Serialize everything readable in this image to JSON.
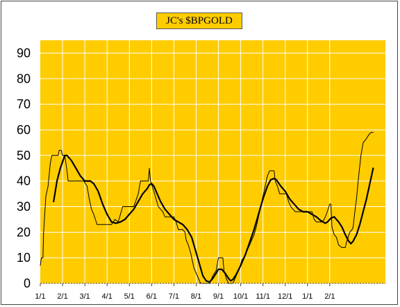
{
  "chart_data": {
    "type": "line",
    "title": "JC's $BPGOLD",
    "xlabel": "",
    "ylabel": "",
    "ylim": [
      0,
      95
    ],
    "yticks": [
      "0",
      "10",
      "20",
      "30",
      "40",
      "50",
      "60",
      "70",
      "80",
      "90"
    ],
    "xticks": [
      "1/1",
      "2/1",
      "3/1",
      "4/1",
      "5/1",
      "6/1",
      "7/1",
      "8/1",
      "9/1",
      "10/1",
      "11/1",
      "12/1",
      "1/1",
      "2/1"
    ],
    "grid": true,
    "x_unit": "months from first 1/1 tick",
    "series": [
      {
        "name": "",
        "style": "thin-step",
        "points": [
          [
            0.0,
            7
          ],
          [
            0.05,
            10
          ],
          [
            0.12,
            10
          ],
          [
            0.15,
            20
          ],
          [
            0.25,
            34
          ],
          [
            0.35,
            38
          ],
          [
            0.45,
            47
          ],
          [
            0.52,
            50
          ],
          [
            0.8,
            50
          ],
          [
            0.85,
            52
          ],
          [
            0.95,
            52
          ],
          [
            1.0,
            50
          ],
          [
            1.1,
            50
          ],
          [
            1.2,
            44
          ],
          [
            1.25,
            40
          ],
          [
            1.95,
            40
          ],
          [
            2.1,
            38
          ],
          [
            2.2,
            33
          ],
          [
            2.3,
            29
          ],
          [
            2.4,
            27
          ],
          [
            2.55,
            23
          ],
          [
            3.2,
            23
          ],
          [
            3.35,
            25
          ],
          [
            3.5,
            24
          ],
          [
            3.7,
            30
          ],
          [
            4.2,
            30
          ],
          [
            4.4,
            35
          ],
          [
            4.5,
            40
          ],
          [
            4.85,
            40
          ],
          [
            4.9,
            45
          ],
          [
            4.95,
            40
          ],
          [
            5.1,
            36
          ],
          [
            5.2,
            33
          ],
          [
            5.3,
            30
          ],
          [
            5.5,
            28
          ],
          [
            5.6,
            26
          ],
          [
            6.0,
            26
          ],
          [
            6.1,
            24
          ],
          [
            6.2,
            21
          ],
          [
            6.4,
            21
          ],
          [
            6.5,
            20
          ],
          [
            6.55,
            17
          ],
          [
            6.65,
            15
          ],
          [
            6.75,
            12
          ],
          [
            6.85,
            8
          ],
          [
            6.9,
            6
          ],
          [
            7.0,
            4
          ],
          [
            7.1,
            2
          ],
          [
            7.2,
            0
          ],
          [
            7.6,
            0
          ],
          [
            7.75,
            3
          ],
          [
            7.9,
            5
          ],
          [
            8.0,
            10
          ],
          [
            8.2,
            10
          ],
          [
            8.25,
            5
          ],
          [
            8.35,
            2
          ],
          [
            8.45,
            0
          ],
          [
            8.65,
            0
          ],
          [
            8.75,
            2
          ],
          [
            8.85,
            4
          ],
          [
            8.95,
            6
          ],
          [
            9.05,
            9
          ],
          [
            9.2,
            11
          ],
          [
            9.3,
            13
          ],
          [
            9.4,
            15
          ],
          [
            9.5,
            17
          ],
          [
            9.6,
            19
          ],
          [
            9.7,
            22
          ],
          [
            9.8,
            26
          ],
          [
            9.9,
            30
          ],
          [
            10.0,
            34
          ],
          [
            10.1,
            38
          ],
          [
            10.2,
            42
          ],
          [
            10.3,
            44
          ],
          [
            10.5,
            44
          ],
          [
            10.55,
            40
          ],
          [
            10.65,
            38
          ],
          [
            10.75,
            35
          ],
          [
            11.05,
            35
          ],
          [
            11.15,
            32
          ],
          [
            11.25,
            30
          ],
          [
            11.45,
            28
          ],
          [
            12.2,
            28
          ],
          [
            12.3,
            25
          ],
          [
            12.4,
            24
          ],
          [
            12.65,
            24
          ],
          [
            12.75,
            25
          ],
          [
            12.85,
            27
          ],
          [
            13.0,
            31
          ],
          [
            13.05,
            31
          ],
          [
            13.1,
            22
          ],
          [
            13.2,
            19
          ],
          [
            13.3,
            18
          ],
          [
            13.4,
            15
          ],
          [
            13.55,
            14
          ],
          [
            13.7,
            14
          ],
          [
            13.75,
            16
          ],
          [
            13.9,
            20
          ],
          [
            14.0,
            21
          ],
          [
            14.05,
            22
          ],
          [
            14.1,
            26
          ],
          [
            14.2,
            33
          ],
          [
            14.3,
            42
          ],
          [
            14.4,
            50
          ],
          [
            14.5,
            55
          ],
          [
            14.6,
            56
          ],
          [
            14.75,
            58
          ],
          [
            14.85,
            59
          ],
          [
            14.95,
            59
          ]
        ]
      },
      {
        "name": "",
        "style": "thick-smooth",
        "points": [
          [
            0.6,
            32
          ],
          [
            0.75,
            40
          ],
          [
            0.9,
            45
          ],
          [
            1.1,
            50
          ],
          [
            1.2,
            50
          ],
          [
            1.4,
            48
          ],
          [
            1.6,
            45
          ],
          [
            1.8,
            42
          ],
          [
            2.0,
            40
          ],
          [
            2.25,
            40
          ],
          [
            2.4,
            39
          ],
          [
            2.6,
            36
          ],
          [
            2.8,
            31
          ],
          [
            3.0,
            27
          ],
          [
            3.2,
            24
          ],
          [
            3.4,
            23.5
          ],
          [
            3.6,
            24
          ],
          [
            3.8,
            25
          ],
          [
            4.0,
            27
          ],
          [
            4.2,
            29
          ],
          [
            4.4,
            32
          ],
          [
            4.6,
            35
          ],
          [
            4.8,
            37
          ],
          [
            4.9,
            38.5
          ],
          [
            5.0,
            39
          ],
          [
            5.1,
            38
          ],
          [
            5.25,
            35
          ],
          [
            5.4,
            32
          ],
          [
            5.6,
            29
          ],
          [
            5.8,
            27
          ],
          [
            6.0,
            25
          ],
          [
            6.2,
            24
          ],
          [
            6.4,
            23
          ],
          [
            6.6,
            21
          ],
          [
            6.8,
            18
          ],
          [
            6.9,
            15
          ],
          [
            7.0,
            12
          ],
          [
            7.1,
            9
          ],
          [
            7.2,
            6
          ],
          [
            7.3,
            3
          ],
          [
            7.45,
            1
          ],
          [
            7.6,
            0.5
          ],
          [
            7.75,
            2
          ],
          [
            7.9,
            4
          ],
          [
            8.0,
            5.5
          ],
          [
            8.15,
            5.5
          ],
          [
            8.3,
            4
          ],
          [
            8.45,
            2
          ],
          [
            8.55,
            1
          ],
          [
            8.65,
            1.5
          ],
          [
            8.8,
            3.5
          ],
          [
            9.0,
            7
          ],
          [
            9.2,
            11
          ],
          [
            9.4,
            16
          ],
          [
            9.6,
            21
          ],
          [
            9.8,
            27
          ],
          [
            10.0,
            33
          ],
          [
            10.2,
            38
          ],
          [
            10.35,
            40.5
          ],
          [
            10.5,
            41
          ],
          [
            10.6,
            40.5
          ],
          [
            10.8,
            38
          ],
          [
            11.0,
            36
          ],
          [
            11.2,
            33
          ],
          [
            11.4,
            31
          ],
          [
            11.6,
            29
          ],
          [
            11.8,
            28
          ],
          [
            12.0,
            28
          ],
          [
            12.2,
            27
          ],
          [
            12.4,
            26
          ],
          [
            12.6,
            24.5
          ],
          [
            12.8,
            23.5
          ],
          [
            12.9,
            24
          ],
          [
            13.05,
            25.5
          ],
          [
            13.2,
            26
          ],
          [
            13.4,
            24
          ],
          [
            13.55,
            22
          ],
          [
            13.7,
            19
          ],
          [
            13.85,
            16.5
          ],
          [
            13.95,
            15.5
          ],
          [
            14.05,
            16.5
          ],
          [
            14.2,
            19
          ],
          [
            14.35,
            23
          ],
          [
            14.5,
            28
          ],
          [
            14.65,
            33
          ],
          [
            14.8,
            39
          ],
          [
            14.95,
            45
          ]
        ]
      }
    ]
  }
}
